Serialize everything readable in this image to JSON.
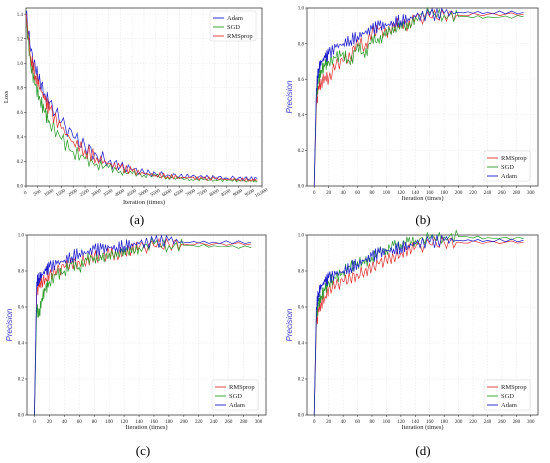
{
  "colors": {
    "Adam": "#1a1acc",
    "SGD": "#2a9a2a",
    "RMSprop": "#e03030",
    "grid": "#dddddd"
  },
  "chart_data": [
    {
      "id": "a",
      "caption": "(a)",
      "type": "line",
      "xlabel": "Iteration (times)",
      "ylabel": "Loss",
      "xlim": [
        0,
        10000
      ],
      "ylim": [
        0,
        1.45
      ],
      "xticks": [
        0,
        500,
        1000,
        1500,
        2000,
        2500,
        3000,
        3500,
        4000,
        4500,
        5000,
        5500,
        6000,
        6500,
        7000,
        7500,
        8000,
        8500,
        9000,
        9500,
        10000
      ],
      "xtick_labels": [
        "0",
        "500",
        "1000",
        "1500",
        "2000",
        "2500",
        "3000",
        "3500",
        "4000",
        "4500",
        "5000",
        "5500",
        "6000",
        "6500",
        "7000",
        "7500",
        "8000",
        "8500",
        "9000",
        "9500",
        "10,000"
      ],
      "yticks": [
        0.0,
        0.2,
        0.4,
        0.6,
        0.8,
        1.0,
        1.2,
        1.4
      ],
      "ytick_labels": [
        "0.0",
        "0.2",
        "0.4",
        "0.6",
        "0.8",
        "1.0",
        "1.2",
        "1.4"
      ],
      "grid": true,
      "legend_position": "top-right",
      "legend": [
        "Adam",
        "SGD",
        "RMSprop"
      ],
      "series": [
        {
          "name": "Adam",
          "x": [
            0,
            200,
            400,
            600,
            800,
            1000,
            1500,
            2000,
            2500,
            3000,
            3500,
            4000,
            4500,
            5000,
            5500,
            6000,
            6500,
            7000,
            7500,
            8000,
            8500,
            9000,
            9500,
            9800
          ],
          "y": [
            1.42,
            1.1,
            0.95,
            0.85,
            0.75,
            0.68,
            0.52,
            0.4,
            0.32,
            0.25,
            0.2,
            0.16,
            0.13,
            0.11,
            0.1,
            0.09,
            0.08,
            0.075,
            0.07,
            0.07,
            0.065,
            0.065,
            0.06,
            0.06
          ]
        },
        {
          "name": "SGD",
          "x": [
            0,
            200,
            400,
            600,
            800,
            1000,
            1500,
            2000,
            2500,
            3000,
            3500,
            4000,
            4500,
            5000,
            5500,
            6000,
            6500,
            7000,
            7500,
            8000,
            8500,
            9000,
            9500,
            9800
          ],
          "y": [
            1.38,
            0.98,
            0.82,
            0.7,
            0.6,
            0.52,
            0.38,
            0.28,
            0.22,
            0.18,
            0.15,
            0.12,
            0.1,
            0.09,
            0.08,
            0.07,
            0.06,
            0.055,
            0.05,
            0.05,
            0.045,
            0.045,
            0.04,
            0.04
          ]
        },
        {
          "name": "RMSprop",
          "x": [
            0,
            200,
            400,
            600,
            800,
            1000,
            1500,
            2000,
            2500,
            3000,
            3500,
            4000,
            4500,
            5000,
            5500,
            6000,
            6500,
            7000,
            7500,
            8000,
            8500,
            9000,
            9500,
            9800
          ],
          "y": [
            1.4,
            1.05,
            0.9,
            0.8,
            0.7,
            0.62,
            0.47,
            0.36,
            0.29,
            0.23,
            0.18,
            0.15,
            0.12,
            0.1,
            0.09,
            0.08,
            0.07,
            0.065,
            0.06,
            0.06,
            0.055,
            0.055,
            0.05,
            0.05
          ]
        }
      ]
    },
    {
      "id": "b",
      "caption": "(b)",
      "type": "line",
      "xlabel": "Iteration (times)",
      "ylabel": "Precision",
      "xlim": [
        -10,
        310
      ],
      "ylim": [
        0,
        1.0
      ],
      "xticks": [
        0,
        20,
        40,
        60,
        80,
        100,
        120,
        140,
        160,
        180,
        200,
        220,
        240,
        260,
        280,
        300
      ],
      "xtick_labels": [
        "0",
        "20",
        "40",
        "60",
        "80",
        "100",
        "120",
        "140",
        "160",
        "180",
        "200",
        "220",
        "240",
        "260",
        "280",
        "300"
      ],
      "yticks": [
        0.0,
        0.2,
        0.4,
        0.6,
        0.8,
        1.0
      ],
      "ytick_labels": [
        "0.0",
        "0.2",
        "0.4",
        "0.6",
        "0.8",
        "1.0"
      ],
      "grid": true,
      "legend_position": "bottom-right",
      "legend": [
        "RMSprop",
        "SGD",
        "Adam"
      ],
      "series": [
        {
          "name": "RMSprop",
          "x": [
            0,
            3,
            6,
            10,
            15,
            20,
            30,
            40,
            50,
            60,
            70,
            80,
            90,
            100,
            110,
            120,
            130,
            140,
            160,
            180,
            200,
            240,
            290
          ],
          "y": [
            0,
            0.45,
            0.55,
            0.58,
            0.62,
            0.6,
            0.68,
            0.7,
            0.72,
            0.82,
            0.78,
            0.86,
            0.88,
            0.85,
            0.9,
            0.92,
            0.9,
            0.94,
            0.95,
            0.96,
            0.96,
            0.965,
            0.965
          ]
        },
        {
          "name": "SGD",
          "x": [
            0,
            3,
            6,
            10,
            15,
            20,
            30,
            40,
            50,
            60,
            70,
            80,
            90,
            100,
            110,
            120,
            130,
            140,
            160,
            180,
            200,
            240,
            290
          ],
          "y": [
            0,
            0.5,
            0.6,
            0.65,
            0.68,
            0.7,
            0.72,
            0.75,
            0.68,
            0.8,
            0.72,
            0.84,
            0.8,
            0.88,
            0.86,
            0.92,
            0.88,
            0.95,
            0.97,
            0.96,
            0.95,
            0.95,
            0.95
          ]
        },
        {
          "name": "Adam",
          "x": [
            0,
            3,
            6,
            10,
            15,
            20,
            30,
            40,
            50,
            60,
            70,
            80,
            90,
            100,
            110,
            120,
            130,
            140,
            160,
            180,
            200,
            240,
            290
          ],
          "y": [
            0,
            0.55,
            0.66,
            0.7,
            0.72,
            0.74,
            0.78,
            0.8,
            0.82,
            0.84,
            0.86,
            0.88,
            0.9,
            0.9,
            0.92,
            0.93,
            0.94,
            0.95,
            0.96,
            0.97,
            0.975,
            0.975,
            0.975
          ]
        }
      ]
    },
    {
      "id": "c",
      "caption": "(c)",
      "type": "line",
      "xlabel": "Iteration (times)",
      "ylabel": "Precision",
      "xlim": [
        -10,
        310
      ],
      "ylim": [
        0,
        1.0
      ],
      "xticks": [
        0,
        20,
        40,
        60,
        80,
        100,
        120,
        140,
        160,
        180,
        200,
        220,
        240,
        260,
        280,
        300
      ],
      "xtick_labels": [
        "0",
        "20",
        "40",
        "60",
        "80",
        "100",
        "120",
        "140",
        "160",
        "180",
        "200",
        "220",
        "240",
        "260",
        "280",
        "300"
      ],
      "yticks": [
        0.0,
        0.2,
        0.4,
        0.6,
        0.8,
        1.0
      ],
      "ytick_labels": [
        "0.0",
        "0.2",
        "0.4",
        "0.6",
        "0.8",
        "1.0"
      ],
      "grid": true,
      "legend_position": "bottom-right",
      "legend": [
        "RMSprop",
        "SGD",
        "Adam"
      ],
      "series": [
        {
          "name": "RMSprop",
          "x": [
            0,
            3,
            6,
            10,
            15,
            20,
            30,
            40,
            50,
            60,
            70,
            80,
            90,
            100,
            110,
            120,
            130,
            140,
            160,
            180,
            200,
            240,
            290
          ],
          "y": [
            0,
            0.68,
            0.72,
            0.74,
            0.76,
            0.78,
            0.8,
            0.82,
            0.84,
            0.85,
            0.86,
            0.88,
            0.87,
            0.9,
            0.89,
            0.91,
            0.92,
            0.93,
            0.94,
            0.95,
            0.95,
            0.95,
            0.95
          ]
        },
        {
          "name": "SGD",
          "x": [
            0,
            3,
            6,
            10,
            15,
            20,
            30,
            40,
            50,
            60,
            70,
            80,
            90,
            100,
            110,
            120,
            130,
            140,
            160,
            180,
            200,
            240,
            290
          ],
          "y": [
            0,
            0.6,
            0.55,
            0.65,
            0.7,
            0.74,
            0.78,
            0.8,
            0.84,
            0.82,
            0.86,
            0.88,
            0.86,
            0.9,
            0.88,
            0.92,
            0.9,
            0.93,
            0.95,
            0.94,
            0.94,
            0.94,
            0.93
          ]
        },
        {
          "name": "Adam",
          "x": [
            0,
            3,
            6,
            10,
            15,
            20,
            30,
            40,
            50,
            60,
            70,
            80,
            90,
            100,
            110,
            120,
            130,
            140,
            160,
            180,
            200,
            240,
            290
          ],
          "y": [
            0,
            0.74,
            0.76,
            0.78,
            0.8,
            0.82,
            0.84,
            0.86,
            0.88,
            0.9,
            0.9,
            0.92,
            0.92,
            0.93,
            0.93,
            0.94,
            0.95,
            0.95,
            0.96,
            0.97,
            0.96,
            0.96,
            0.96
          ]
        }
      ]
    },
    {
      "id": "d",
      "caption": "(d)",
      "type": "line",
      "xlabel": "Iteration (times)",
      "ylabel": "Precision",
      "xlim": [
        -10,
        310
      ],
      "ylim": [
        0,
        1.0
      ],
      "xticks": [
        0,
        20,
        40,
        60,
        80,
        100,
        120,
        140,
        160,
        180,
        200,
        220,
        240,
        260,
        280,
        300
      ],
      "xtick_labels": [
        "0",
        "20",
        "40",
        "60",
        "80",
        "100",
        "120",
        "140",
        "160",
        "180",
        "200",
        "220",
        "240",
        "260",
        "280",
        "300"
      ],
      "yticks": [
        0.0,
        0.2,
        0.4,
        0.6,
        0.8,
        1.0
      ],
      "ytick_labels": [
        "0.0",
        "0.2",
        "0.4",
        "0.6",
        "0.8",
        "1.0"
      ],
      "grid": true,
      "legend_position": "bottom-right",
      "legend": [
        "RMSprop",
        "SGD",
        "Adam"
      ],
      "series": [
        {
          "name": "RMSprop",
          "x": [
            0,
            3,
            6,
            10,
            15,
            20,
            30,
            40,
            50,
            60,
            70,
            80,
            90,
            100,
            110,
            120,
            130,
            140,
            160,
            180,
            200,
            240,
            290
          ],
          "y": [
            0,
            0.5,
            0.58,
            0.62,
            0.66,
            0.7,
            0.72,
            0.74,
            0.76,
            0.78,
            0.8,
            0.82,
            0.84,
            0.86,
            0.88,
            0.9,
            0.92,
            0.93,
            0.95,
            0.96,
            0.96,
            0.96,
            0.96
          ]
        },
        {
          "name": "SGD",
          "x": [
            0,
            3,
            6,
            10,
            15,
            20,
            30,
            40,
            50,
            60,
            70,
            80,
            90,
            100,
            110,
            120,
            130,
            140,
            160,
            180,
            200,
            240,
            290
          ],
          "y": [
            0,
            0.55,
            0.62,
            0.66,
            0.7,
            0.74,
            0.76,
            0.8,
            0.82,
            0.85,
            0.84,
            0.88,
            0.9,
            0.92,
            0.94,
            0.95,
            0.96,
            0.97,
            0.98,
            0.99,
            0.99,
            0.985,
            0.98
          ]
        },
        {
          "name": "Adam",
          "x": [
            0,
            3,
            6,
            10,
            15,
            20,
            30,
            40,
            50,
            60,
            70,
            80,
            90,
            100,
            110,
            120,
            130,
            140,
            160,
            180,
            200,
            240,
            290
          ],
          "y": [
            0,
            0.6,
            0.68,
            0.72,
            0.74,
            0.76,
            0.78,
            0.8,
            0.82,
            0.84,
            0.86,
            0.88,
            0.9,
            0.91,
            0.92,
            0.93,
            0.94,
            0.95,
            0.96,
            0.97,
            0.97,
            0.97,
            0.97
          ]
        }
      ]
    }
  ]
}
